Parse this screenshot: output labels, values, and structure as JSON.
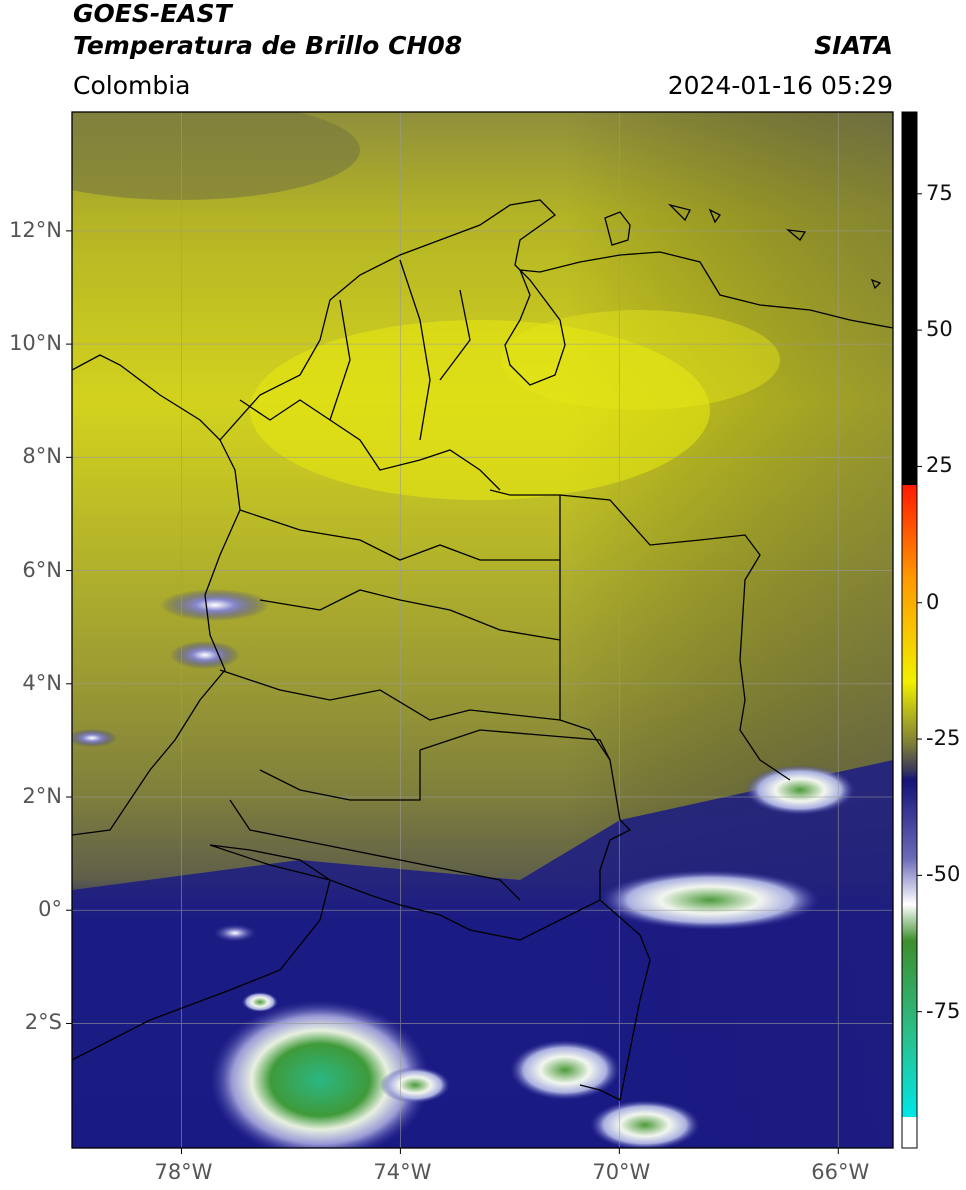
{
  "header": {
    "satellite": "GOES-EAST",
    "product": "Temperatura de Brillo CH08",
    "region": "Colombia",
    "source": "SIATA",
    "timestamp": "2024-01-16 05:29"
  },
  "map": {
    "lat_ticks": [
      {
        "value": 12,
        "label": "12°N"
      },
      {
        "value": 10,
        "label": "10°N"
      },
      {
        "value": 8,
        "label": "8°N"
      },
      {
        "value": 6,
        "label": "6°N"
      },
      {
        "value": 4,
        "label": "4°N"
      },
      {
        "value": 2,
        "label": "2°N"
      },
      {
        "value": 0,
        "label": "0°"
      },
      {
        "value": -2,
        "label": "2°S"
      }
    ],
    "lon_ticks": [
      {
        "value": -78,
        "label": "78°W"
      },
      {
        "value": -74,
        "label": "74°W"
      },
      {
        "value": -70,
        "label": "70°W"
      },
      {
        "value": -66,
        "label": "66°W"
      }
    ],
    "extent": {
      "lon_min": -80,
      "lon_max": -65,
      "lat_min": -4.2,
      "lat_max": 14.1
    }
  },
  "colorbar": {
    "ticks": [
      {
        "value": 75,
        "label": "75"
      },
      {
        "value": 50,
        "label": "50"
      },
      {
        "value": 25,
        "label": "25"
      },
      {
        "value": 0,
        "label": "0"
      },
      {
        "value": -25,
        "label": "-25"
      },
      {
        "value": -50,
        "label": "-50"
      },
      {
        "value": -75,
        "label": "-75"
      }
    ],
    "range": [
      -100,
      90
    ],
    "colors": {
      "black": "#000000",
      "red": "#ff1a00",
      "orange": "#ff9900",
      "yellow": "#f0f000",
      "olive": "#7d7d3a",
      "navy": "#14147a",
      "white": "#ffffff",
      "green": "#3e8f2e",
      "teal": "#2bbf8a",
      "cyan": "#00e6e6"
    }
  }
}
